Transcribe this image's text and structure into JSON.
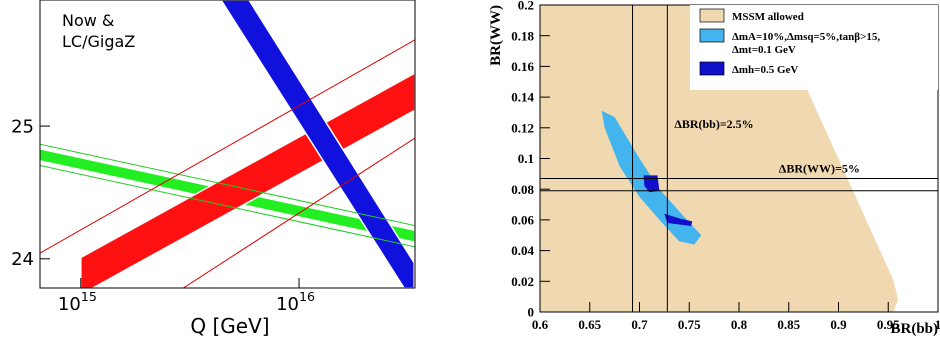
{
  "chart_data": [
    {
      "type": "band",
      "xlabel": "Q [GeV]",
      "annotations": [
        "Now  &",
        "LC/GigaZ"
      ],
      "xscale": "log",
      "xlim": [
        650000000000000,
        34000000000000000
      ],
      "xticks": [
        {
          "value": 1000000000000000,
          "label": "10",
          "exponent": "15"
        },
        {
          "value": 10000000000000000,
          "label": "10",
          "exponent": "16"
        }
      ],
      "ylim": [
        23.78,
        25.95
      ],
      "yticks": [
        24,
        25
      ],
      "polygons": [
        {
          "color": "#22ee22",
          "x": [
            480000000000000,
            34000000000000000,
            34000000000000000,
            480000000000000
          ],
          "y": [
            24.875,
            24.215,
            24.125,
            24.785
          ]
        },
        {
          "color": "#ff1111",
          "x": [
            1000000000000000,
            34000000000000000,
            34000000000000000,
            1000000000000000
          ],
          "y": [
            24.01,
            25.4,
            25.12,
            23.73
          ]
        },
        {
          "color": "#1111dd",
          "x": [
            4390000000000000,
            5900000000000000,
            33700000000000000,
            33700000000000000,
            30300000000000000
          ],
          "y": [
            25.95,
            25.95,
            23.97,
            23.78,
            23.78
          ]
        }
      ],
      "lines": [
        {
          "color": "#22cc22",
          "x": [
            480000000000000,
            34000000000000000
          ],
          "y": [
            24.91,
            24.25
          ]
        },
        {
          "color": "#22cc22",
          "x": [
            480000000000000,
            34000000000000000
          ],
          "y": [
            24.75,
            24.09
          ]
        },
        {
          "color": "#dd0000",
          "x": [
            480000000000000,
            34000000000000000
          ],
          "y": [
            23.92,
            25.65
          ]
        },
        {
          "color": "#dd0000",
          "x": [
            2950000000000000,
            34000000000000000
          ],
          "y": [
            23.78,
            24.91
          ]
        }
      ]
    },
    {
      "type": "band",
      "xlabel": "BR(bb)",
      "ylabel": "BR(WW)",
      "xlim": [
        0.6,
        1.0
      ],
      "xticks": [
        0.6,
        0.65,
        0.7,
        0.75,
        0.8,
        0.85,
        0.9,
        0.95,
        1
      ],
      "ylim": [
        0,
        0.2
      ],
      "yticks": [
        0,
        0.02,
        0.04,
        0.06,
        0.08,
        0.1,
        0.12,
        0.14,
        0.16,
        0.18,
        0.2
      ],
      "polygons": [
        {
          "name": "MSSM allowed",
          "color": "#f0d9b0",
          "x": [
            0.6,
            0.83,
            0.955,
            0.96,
            0.955,
            0.6
          ],
          "y": [
            0.2,
            0.2,
            0.021,
            0.008,
            0,
            0
          ]
        },
        {
          "name": "ΔmA=10%,Δmsq=5%,tanβ>15,",
          "name2": "Δmt=0.1 GeV",
          "color": "#44b4ee",
          "x": [
            0.662,
            0.675,
            0.7,
            0.72,
            0.745,
            0.762,
            0.755,
            0.74,
            0.72,
            0.7,
            0.68,
            0.665
          ],
          "y": [
            0.131,
            0.127,
            0.1,
            0.08,
            0.062,
            0.05,
            0.044,
            0.046,
            0.06,
            0.075,
            0.095,
            0.12
          ]
        },
        {
          "name": "Δmh=0.5 GeV",
          "color": "#1010cc",
          "x": [
            0.704,
            0.718,
            0.72,
            0.71,
            0.705
          ],
          "y": [
            0.089,
            0.089,
            0.079,
            0.078,
            0.082
          ]
        },
        {
          "color": "#1010cc",
          "x": [
            0.725,
            0.74,
            0.753,
            0.752,
            0.728
          ],
          "y": [
            0.064,
            0.061,
            0.059,
            0.056,
            0.058
          ]
        }
      ],
      "lines": [
        {
          "color": "#000000",
          "x": [
            0.693,
            0.693
          ],
          "y": [
            0,
            0.2
          ]
        },
        {
          "color": "#000000",
          "x": [
            0.728,
            0.728
          ],
          "y": [
            0,
            0.2
          ]
        },
        {
          "color": "#000000",
          "x": [
            0.6,
            1.0
          ],
          "y": [
            0.087,
            0.087
          ]
        },
        {
          "color": "#000000",
          "x": [
            0.6,
            1.0
          ],
          "y": [
            0.079,
            0.079
          ]
        }
      ],
      "notes": [
        {
          "text": "ΔBR(bb)=2.5%",
          "x": 0.735,
          "y": 0.12
        },
        {
          "text": "ΔBR(WW)=5%",
          "x": 0.84,
          "y": 0.091
        }
      ]
    }
  ]
}
